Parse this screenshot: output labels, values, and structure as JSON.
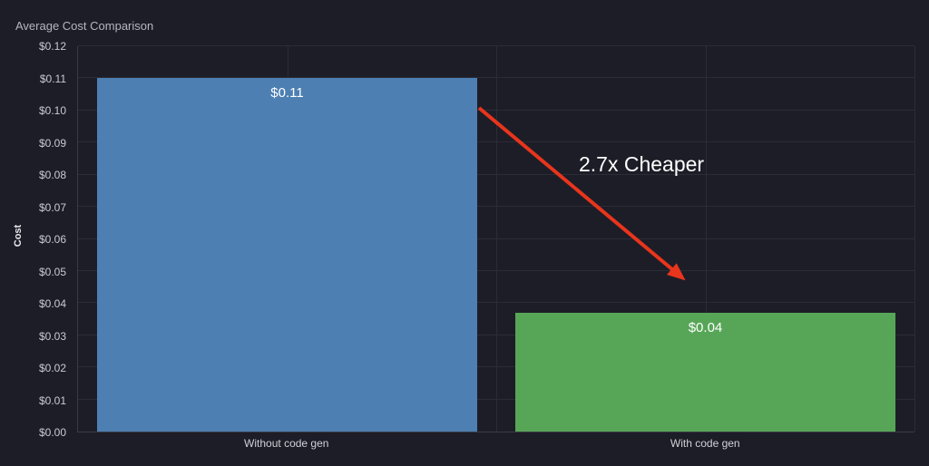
{
  "chart_data": {
    "type": "bar",
    "title": "Average Cost Comparison",
    "ylabel": "Cost",
    "categories": [
      "Without code gen",
      "With code gen"
    ],
    "values": [
      0.11,
      0.037
    ],
    "bar_labels": [
      "$0.11",
      "$0.04"
    ],
    "bar_colors": [
      "#4d7fb2",
      "#57a657"
    ],
    "ylim": [
      0,
      0.12
    ],
    "ytick_step": 0.01,
    "ytick_labels": [
      "$0.00",
      "$0.01",
      "$0.02",
      "$0.03",
      "$0.04",
      "$0.05",
      "$0.06",
      "$0.07",
      "$0.08",
      "$0.09",
      "$0.10",
      "$0.11",
      "$0.12"
    ],
    "grid": true,
    "legend": "none",
    "annotation": {
      "text": "2.7x Cheaper",
      "color": "#ffffff"
    },
    "arrow_color": "#e8351c",
    "colors": {
      "background": "#1d1d27",
      "grid": "#2c2c38",
      "axis": "#3b3b47",
      "tick_text": "#c9cad3",
      "xtick_text": "#cfd0d8",
      "title_text": "#b4b6bf",
      "ylabel_text": "#e8e9ee",
      "bar_label_text": "#ffffff",
      "annotation_text": "#ffffff"
    }
  }
}
